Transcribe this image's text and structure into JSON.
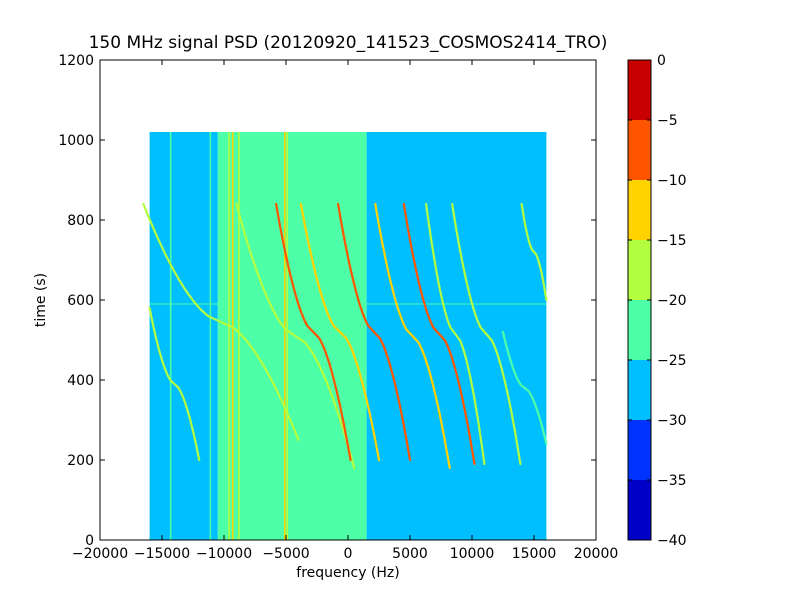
{
  "chart_data": {
    "type": "heatmap",
    "title": "150 MHz signal PSD (20120920_141523_COSMOS2414_TRO)",
    "xlabel": "frequency (Hz)",
    "ylabel": "time (s)",
    "xlim": [
      -20000,
      20000
    ],
    "ylim": [
      0,
      1200
    ],
    "x_ticks": [
      -20000,
      -15000,
      -10000,
      -5000,
      0,
      5000,
      10000,
      15000,
      20000
    ],
    "x_tick_labels": [
      "−20000",
      "−15000",
      "−10000",
      "−5000",
      "0",
      "5000",
      "10000",
      "15000",
      "20000"
    ],
    "y_ticks": [
      0,
      200,
      400,
      600,
      800,
      1000,
      1200
    ],
    "y_tick_labels": [
      "0",
      "200",
      "400",
      "600",
      "800",
      "1000",
      "1200"
    ],
    "data_extent": {
      "x": [
        -16000,
        16000
      ],
      "y": [
        0,
        1020
      ]
    },
    "colorbar": {
      "levels": [
        -40,
        -35,
        -30,
        -25,
        -20,
        -15,
        -10,
        -5,
        0
      ],
      "tick_labels": [
        "−40",
        "−35",
        "−30",
        "−25",
        "−20",
        "−15",
        "−10",
        "−5",
        "0"
      ],
      "colors": [
        "#0000c8",
        "#0033ff",
        "#00bfff",
        "#4dffa6",
        "#b3ff3f",
        "#ffd200",
        "#ff5500",
        "#c80000"
      ]
    },
    "background_levels": [
      {
        "name": "outer band",
        "x": [
          -16000,
          -10500
        ],
        "color": "#00bfff"
      },
      {
        "name": "central band",
        "x": [
          -10500,
          1500
        ],
        "color": "#4dffa6"
      },
      {
        "name": "right band",
        "x": [
          1500,
          16000
        ],
        "color": "#00bfff"
      }
    ],
    "vertical_lines": [
      {
        "x": -14300,
        "color": "#4dffa6"
      },
      {
        "x": -11100,
        "color": "#4dffa6"
      },
      {
        "x": -9600,
        "color": "#b3ff3f"
      },
      {
        "x": -9300,
        "color": "#ffd200"
      },
      {
        "x": -8800,
        "color": "#b3ff3f"
      },
      {
        "x": -5100,
        "color": "#ffd200"
      },
      {
        "x": -4900,
        "color": "#b3ff3f"
      }
    ],
    "horizontal_lines": [
      {
        "y": 590,
        "x": [
          -16000,
          16000
        ],
        "color": "#4dffa6"
      }
    ],
    "tracks": [
      {
        "y_start": 840,
        "y_end": 250,
        "x_top": -16500,
        "x_bottom": -4000,
        "color": "#b3ff3f"
      },
      {
        "y_start": 580,
        "y_end": 200,
        "x_top": -16000,
        "x_bottom": -12000,
        "color": "#b3ff3f"
      },
      {
        "y_start": 840,
        "y_end": 180,
        "x_top": -9000,
        "x_bottom": 500,
        "color": "#b3ff3f"
      },
      {
        "y_start": 840,
        "y_end": 200,
        "x_top": -5800,
        "x_bottom": 200,
        "color": "#ff5500"
      },
      {
        "y_start": 840,
        "y_end": 200,
        "x_top": -3800,
        "x_bottom": 2500,
        "color": "#ffd200"
      },
      {
        "y_start": 840,
        "y_end": 200,
        "x_top": -800,
        "x_bottom": 5000,
        "color": "#ff5500"
      },
      {
        "y_start": 840,
        "y_end": 180,
        "x_top": 2200,
        "x_bottom": 8200,
        "color": "#ffd200"
      },
      {
        "y_start": 840,
        "y_end": 190,
        "x_top": 4500,
        "x_bottom": 10200,
        "color": "#ff5500"
      },
      {
        "y_start": 840,
        "y_end": 190,
        "x_top": 6300,
        "x_bottom": 11000,
        "color": "#b3ff3f"
      },
      {
        "y_start": 840,
        "y_end": 190,
        "x_top": 8400,
        "x_bottom": 13900,
        "color": "#b3ff3f"
      },
      {
        "y_start": 840,
        "y_end": 600,
        "x_top": 14000,
        "x_bottom": 16000,
        "color": "#b3ff3f"
      },
      {
        "y_start": 520,
        "y_end": 240,
        "x_top": 12500,
        "x_bottom": 16000,
        "color": "#4dffa6"
      }
    ]
  }
}
